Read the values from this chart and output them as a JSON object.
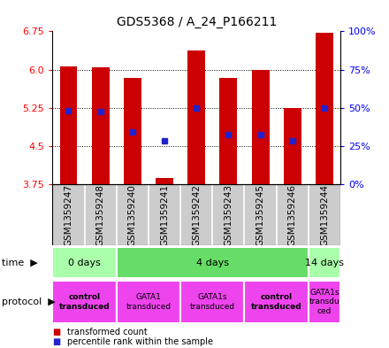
{
  "title": "GDS5368 / A_24_P166211",
  "samples": [
    "GSM1359247",
    "GSM1359248",
    "GSM1359240",
    "GSM1359241",
    "GSM1359242",
    "GSM1359243",
    "GSM1359245",
    "GSM1359246",
    "GSM1359244"
  ],
  "bar_bottom": 3.75,
  "bar_tops": [
    6.06,
    6.04,
    5.83,
    3.88,
    6.38,
    5.83,
    6.0,
    5.25,
    6.72
  ],
  "blue_y": [
    5.2,
    5.18,
    4.78,
    4.6,
    5.25,
    4.72,
    4.72,
    4.6,
    5.25
  ],
  "ylim": [
    3.75,
    6.75
  ],
  "yticks_left": [
    3.75,
    4.5,
    5.25,
    6.0,
    6.75
  ],
  "yticks_right": [
    0,
    25,
    50,
    75,
    100
  ],
  "ytick_labels_right": [
    "0%",
    "25%",
    "50%",
    "75%",
    "100%"
  ],
  "bar_color": "#cc0000",
  "blue_color": "#2222cc",
  "plot_bg": "#ffffff",
  "label_bg": "#cccccc",
  "time_row": {
    "groups": [
      {
        "label": "0 days",
        "start": 0,
        "end": 2,
        "color": "#aaffaa"
      },
      {
        "label": "4 days",
        "start": 2,
        "end": 8,
        "color": "#66dd66"
      },
      {
        "label": "14 days",
        "start": 8,
        "end": 9,
        "color": "#aaffaa"
      }
    ]
  },
  "protocol_row": {
    "groups": [
      {
        "label": "control\ntransduced",
        "start": 0,
        "end": 2,
        "color": "#ee44ee",
        "bold": true
      },
      {
        "label": "GATA1\ntransduced",
        "start": 2,
        "end": 4,
        "color": "#ee44ee",
        "bold": false
      },
      {
        "label": "GATA1s\ntransduced",
        "start": 4,
        "end": 6,
        "color": "#ee44ee",
        "bold": false
      },
      {
        "label": "control\ntransduced",
        "start": 6,
        "end": 8,
        "color": "#ee44ee",
        "bold": true
      },
      {
        "label": "GATA1s\ntransdu\nced",
        "start": 8,
        "end": 9,
        "color": "#ee44ee",
        "bold": false
      }
    ]
  }
}
